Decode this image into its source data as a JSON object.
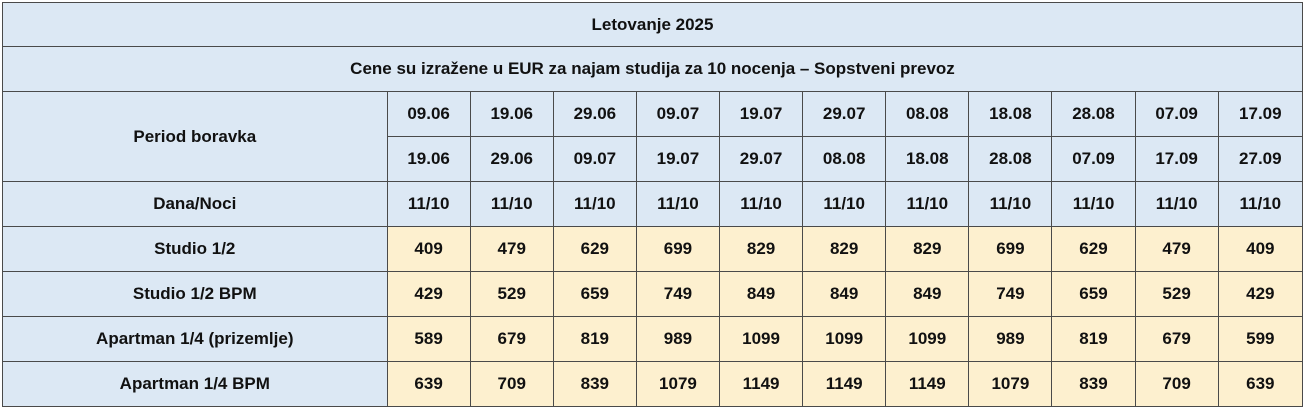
{
  "table": {
    "title": "Letovanje 2025",
    "subtitle": "Cene su izražene u EUR za najam studija za 10 nocenja – Sopstveni prevoz",
    "period_label": "Period boravka",
    "period_from": [
      "09.06",
      "19.06",
      "29.06",
      "09.07",
      "19.07",
      "29.07",
      "08.08",
      "18.08",
      "28.08",
      "07.09",
      "17.09"
    ],
    "period_to": [
      "19.06",
      "29.06",
      "09.07",
      "19.07",
      "29.07",
      "08.08",
      "18.08",
      "28.08",
      "07.09",
      "17.09",
      "27.09"
    ],
    "nights_label": "Dana/Noci",
    "nights": [
      "11/10",
      "11/10",
      "11/10",
      "11/10",
      "11/10",
      "11/10",
      "11/10",
      "11/10",
      "11/10",
      "11/10",
      "11/10"
    ],
    "rows": [
      {
        "label": "Studio 1/2",
        "prices": [
          "409",
          "479",
          "629",
          "699",
          "829",
          "829",
          "829",
          "699",
          "629",
          "479",
          "409"
        ]
      },
      {
        "label": "Studio 1/2 BPM",
        "prices": [
          "429",
          "529",
          "659",
          "749",
          "849",
          "849",
          "849",
          "749",
          "659",
          "529",
          "429"
        ]
      },
      {
        "label": "Apartman 1/4 (prizemlje)",
        "prices": [
          "589",
          "679",
          "819",
          "989",
          "1099",
          "1099",
          "1099",
          "989",
          "819",
          "679",
          "599"
        ]
      },
      {
        "label": "Apartman 1/4 BPM",
        "prices": [
          "639",
          "709",
          "839",
          "1079",
          "1149",
          "1149",
          "1149",
          "1079",
          "839",
          "709",
          "639"
        ]
      }
    ]
  }
}
